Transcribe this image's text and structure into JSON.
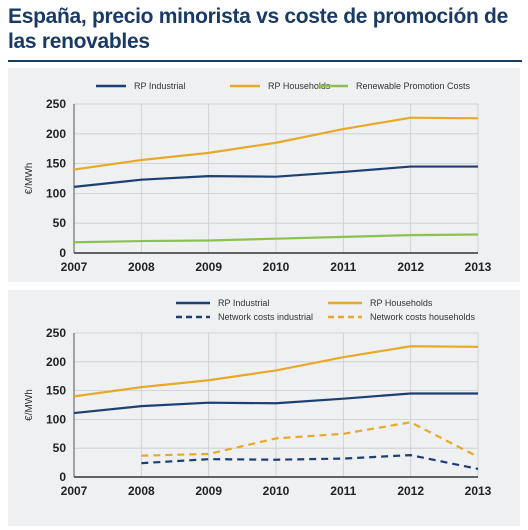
{
  "title": "España, precio minorista vs coste de promoción de las renovables",
  "chart_data": [
    {
      "type": "line",
      "ylabel": "€/MWh",
      "ylim": [
        0,
        250
      ],
      "yticks": [
        0,
        50,
        100,
        150,
        200,
        250
      ],
      "x": [
        2007,
        2008,
        2009,
        2010,
        2011,
        2012,
        2013
      ],
      "grid": true,
      "legend_position": "top",
      "series": [
        {
          "name": "RP Industrial",
          "color": "#1d3f73",
          "dashed": false,
          "values": [
            111,
            123,
            129,
            128,
            136,
            145,
            145
          ]
        },
        {
          "name": "RP Households",
          "color": "#e8a92a",
          "dashed": false,
          "values": [
            140,
            156,
            168,
            185,
            208,
            227,
            226
          ]
        },
        {
          "name": "Renewable Promotion Costs",
          "color": "#8cc152",
          "dashed": false,
          "values": [
            18,
            20,
            21,
            24,
            27,
            30,
            31
          ]
        }
      ]
    },
    {
      "type": "line",
      "ylabel": "€/MWh",
      "ylim": [
        0,
        250
      ],
      "yticks": [
        0,
        50,
        100,
        150,
        200,
        250
      ],
      "x": [
        2007,
        2008,
        2009,
        2010,
        2011,
        2012,
        2013
      ],
      "grid": true,
      "legend_position": "top",
      "series": [
        {
          "name": "RP Industrial",
          "color": "#1d3f73",
          "dashed": false,
          "values": [
            111,
            123,
            129,
            128,
            136,
            145,
            145
          ]
        },
        {
          "name": "RP Households",
          "color": "#e8a92a",
          "dashed": false,
          "values": [
            140,
            156,
            168,
            185,
            208,
            227,
            226
          ]
        },
        {
          "name": "Network costs industrial",
          "color": "#1d3f73",
          "dashed": true,
          "values": [
            null,
            24,
            31,
            30,
            32,
            38,
            14
          ]
        },
        {
          "name": "Network costs households",
          "color": "#e8a92a",
          "dashed": true,
          "values": [
            null,
            37,
            40,
            67,
            75,
            95,
            35
          ]
        }
      ]
    }
  ]
}
